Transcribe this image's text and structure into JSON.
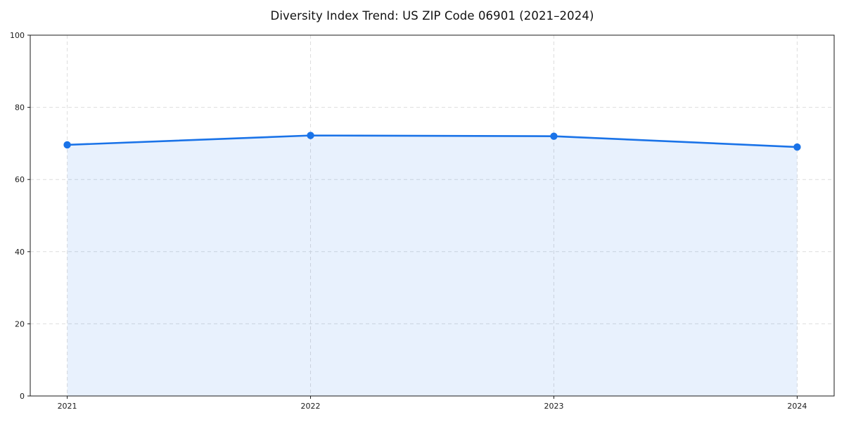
{
  "title": "Diversity Index Trend: US ZIP Code 06901 (2021–2024)",
  "chart_data": {
    "type": "line",
    "title": "Diversity Index Trend: US ZIP Code 06901 (2021–2024)",
    "categories": [
      "2021",
      "2022",
      "2023",
      "2024"
    ],
    "series": [
      {
        "name": "Diversity Index",
        "values": [
          69.6,
          72.2,
          72.0,
          69.0
        ]
      }
    ],
    "xlabel": "",
    "ylabel": "",
    "ylim": [
      0,
      100
    ],
    "y_ticks": [
      0,
      20,
      40,
      60,
      80,
      100
    ],
    "grid": "dashed both axes",
    "legend_position": "none",
    "area_fill": true,
    "marker": "circle",
    "colors": {
      "line": "#1a73e8",
      "marker": "#1a73e8",
      "fill": "#1a73e8",
      "fill_opacity": "0.10",
      "grid": "#dddddd",
      "axis": "#1a1a1a",
      "tick_text": "#1a1a1a",
      "background": "#ffffff"
    }
  }
}
